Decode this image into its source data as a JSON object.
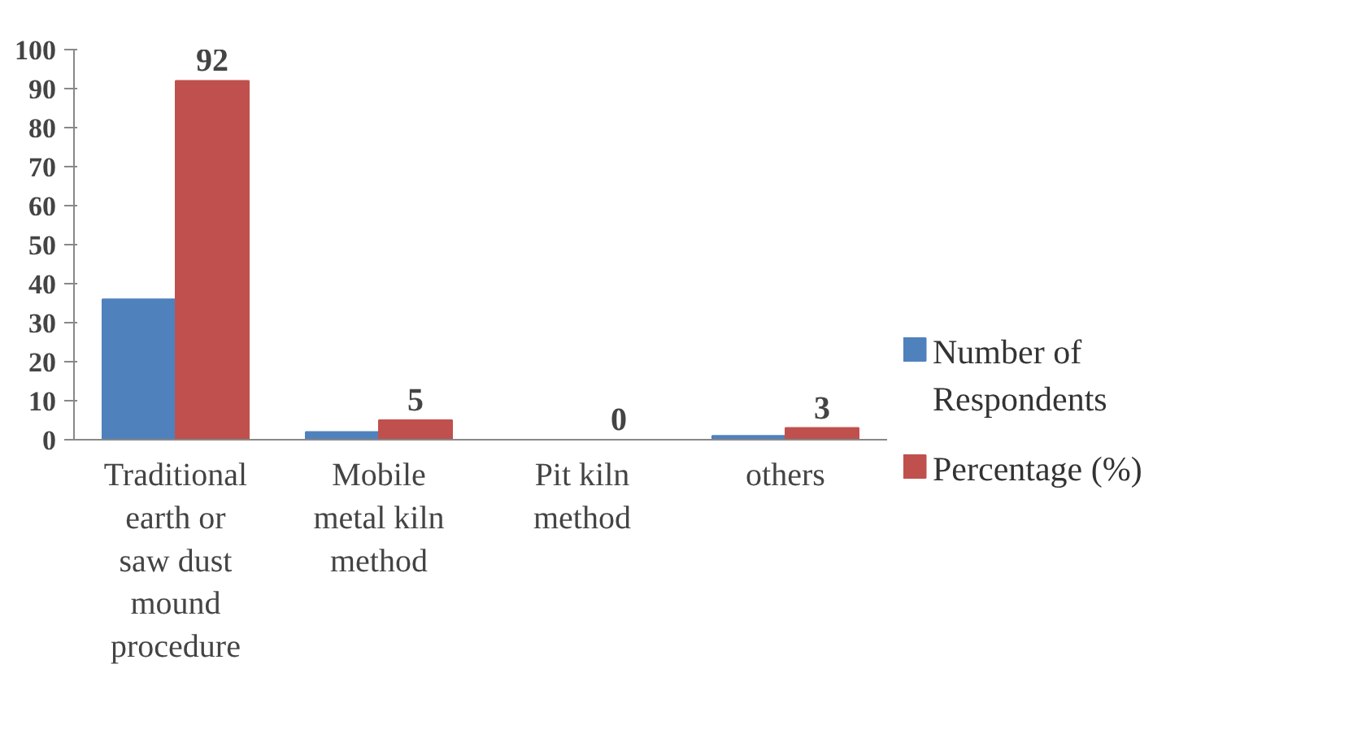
{
  "chart_data": {
    "type": "bar",
    "categories": [
      "Traditional earth or saw dust mound procedure",
      "Mobile metal kiln method",
      "Pit kiln method",
      "others"
    ],
    "series": [
      {
        "name": "Number of Respondents",
        "color": "#4f81bd",
        "values": [
          36,
          2,
          0,
          1
        ]
      },
      {
        "name": "Percentage (%)",
        "color": "#c0504d",
        "values": [
          92,
          5,
          0,
          3
        ],
        "value_labels": [
          "92",
          "5",
          "0",
          "3"
        ]
      }
    ],
    "ylim": [
      0,
      100
    ],
    "yticks": [
      0,
      10,
      20,
      30,
      40,
      50,
      60,
      70,
      80,
      90,
      100
    ],
    "grid": false,
    "legend": "right"
  }
}
